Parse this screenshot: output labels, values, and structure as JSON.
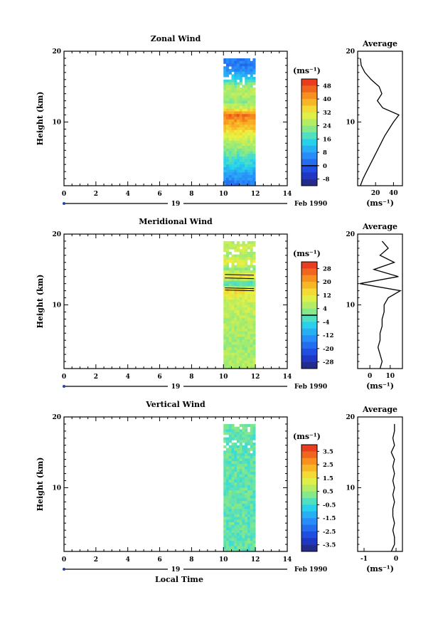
{
  "chart_data": [
    {
      "type": "heatmap",
      "title": "Zonal Wind",
      "ylabel": "Height (km)",
      "xlim": [
        0,
        14
      ],
      "ylim": [
        1,
        20
      ],
      "xticks": [
        "0",
        "2",
        "4",
        "6",
        "8",
        "10",
        "12",
        "14"
      ],
      "yticks": [
        "20",
        "10"
      ],
      "date_axis": {
        "day_label": "19",
        "month_label": "Feb 1990"
      },
      "data_extent": {
        "x": [
          10,
          12
        ],
        "y": [
          1,
          19
        ]
      },
      "colorbar": {
        "unit_label": "(ms⁻¹)",
        "ticks": [
          "48",
          "40",
          "32",
          "24",
          "16",
          "8",
          "0",
          "-8"
        ],
        "range": [
          -12,
          52
        ],
        "contour_at": 0
      },
      "profile": {
        "title": "Average",
        "xticks": [
          "20",
          "40"
        ],
        "xlim": [
          0,
          50
        ],
        "xunit": "(ms⁻¹)",
        "yticks": [
          "20",
          "10"
        ],
        "heights": [
          1,
          2,
          3,
          4,
          5,
          6,
          7,
          8,
          9,
          10,
          11,
          12,
          13,
          14,
          15,
          16,
          17,
          18,
          19
        ],
        "values": [
          3,
          6,
          10,
          14,
          18,
          22,
          26,
          30,
          35,
          40,
          46,
          28,
          22,
          27,
          24,
          15,
          8,
          4,
          3
        ]
      }
    },
    {
      "type": "heatmap",
      "title": "Meridional Wind",
      "ylabel": "Height (km)",
      "xlim": [
        0,
        14
      ],
      "ylim": [
        1,
        20
      ],
      "xticks": [
        "0",
        "2",
        "4",
        "6",
        "8",
        "10",
        "12",
        "14"
      ],
      "yticks": [
        "20",
        "10"
      ],
      "date_axis": {
        "day_label": "19",
        "month_label": "Feb 1990"
      },
      "data_extent": {
        "x": [
          10,
          12
        ],
        "y": [
          1,
          19
        ]
      },
      "colorbar": {
        "unit_label": "(ms⁻¹)",
        "ticks": [
          "28",
          "20",
          "12",
          "4",
          "-4",
          "-12",
          "-20",
          "-28"
        ],
        "range": [
          -32,
          32
        ],
        "contour_at": 0
      },
      "profile": {
        "title": "Average",
        "xticks": [
          "0",
          "10"
        ],
        "xlim": [
          -6,
          16
        ],
        "xunit": "(ms⁻¹)",
        "yticks": [
          "20",
          "10"
        ],
        "heights": [
          1,
          2,
          3,
          4,
          5,
          6,
          7,
          8,
          9,
          10,
          11,
          12,
          13,
          14,
          15,
          16,
          17,
          18,
          19
        ],
        "values": [
          5,
          6,
          5,
          4,
          5,
          5,
          6,
          6,
          7,
          7,
          9,
          15,
          -5,
          14,
          2,
          12,
          5,
          9,
          6
        ]
      }
    },
    {
      "type": "heatmap",
      "title": "Vertical Wind",
      "ylabel": "Height (km)",
      "xlabel": "Local Time",
      "xlim": [
        0,
        14
      ],
      "ylim": [
        1,
        20
      ],
      "xticks": [
        "0",
        "2",
        "4",
        "6",
        "8",
        "10",
        "12",
        "14"
      ],
      "yticks": [
        "20",
        "10"
      ],
      "date_axis": {
        "day_label": "19",
        "month_label": "Feb 1990"
      },
      "data_extent": {
        "x": [
          10,
          12
        ],
        "y": [
          1,
          19
        ]
      },
      "colorbar": {
        "unit_label": "(ms⁻¹)",
        "ticks": [
          "3.5",
          "2.5",
          "1.5",
          "0.5",
          "-0.5",
          "-1.5",
          "-2.5",
          "-3.5"
        ],
        "range": [
          -4,
          4
        ],
        "contour_at": null
      },
      "profile": {
        "title": "Average",
        "xticks": [
          "-1",
          "0"
        ],
        "xlim": [
          -1.2,
          0.2
        ],
        "xunit": "(ms⁻¹)",
        "yticks": [
          "20",
          "10"
        ],
        "heights": [
          1,
          2,
          3,
          4,
          5,
          6,
          7,
          8,
          9,
          10,
          11,
          12,
          13,
          14,
          15,
          16,
          17,
          18,
          19
        ],
        "values": [
          -0.15,
          -0.05,
          -0.05,
          -0.1,
          -0.05,
          -0.1,
          -0.1,
          -0.05,
          -0.1,
          -0.05,
          -0.1,
          -0.05,
          -0.1,
          -0.05,
          -0.15,
          -0.05,
          -0.1,
          -0.05,
          -0.05
        ]
      }
    }
  ]
}
